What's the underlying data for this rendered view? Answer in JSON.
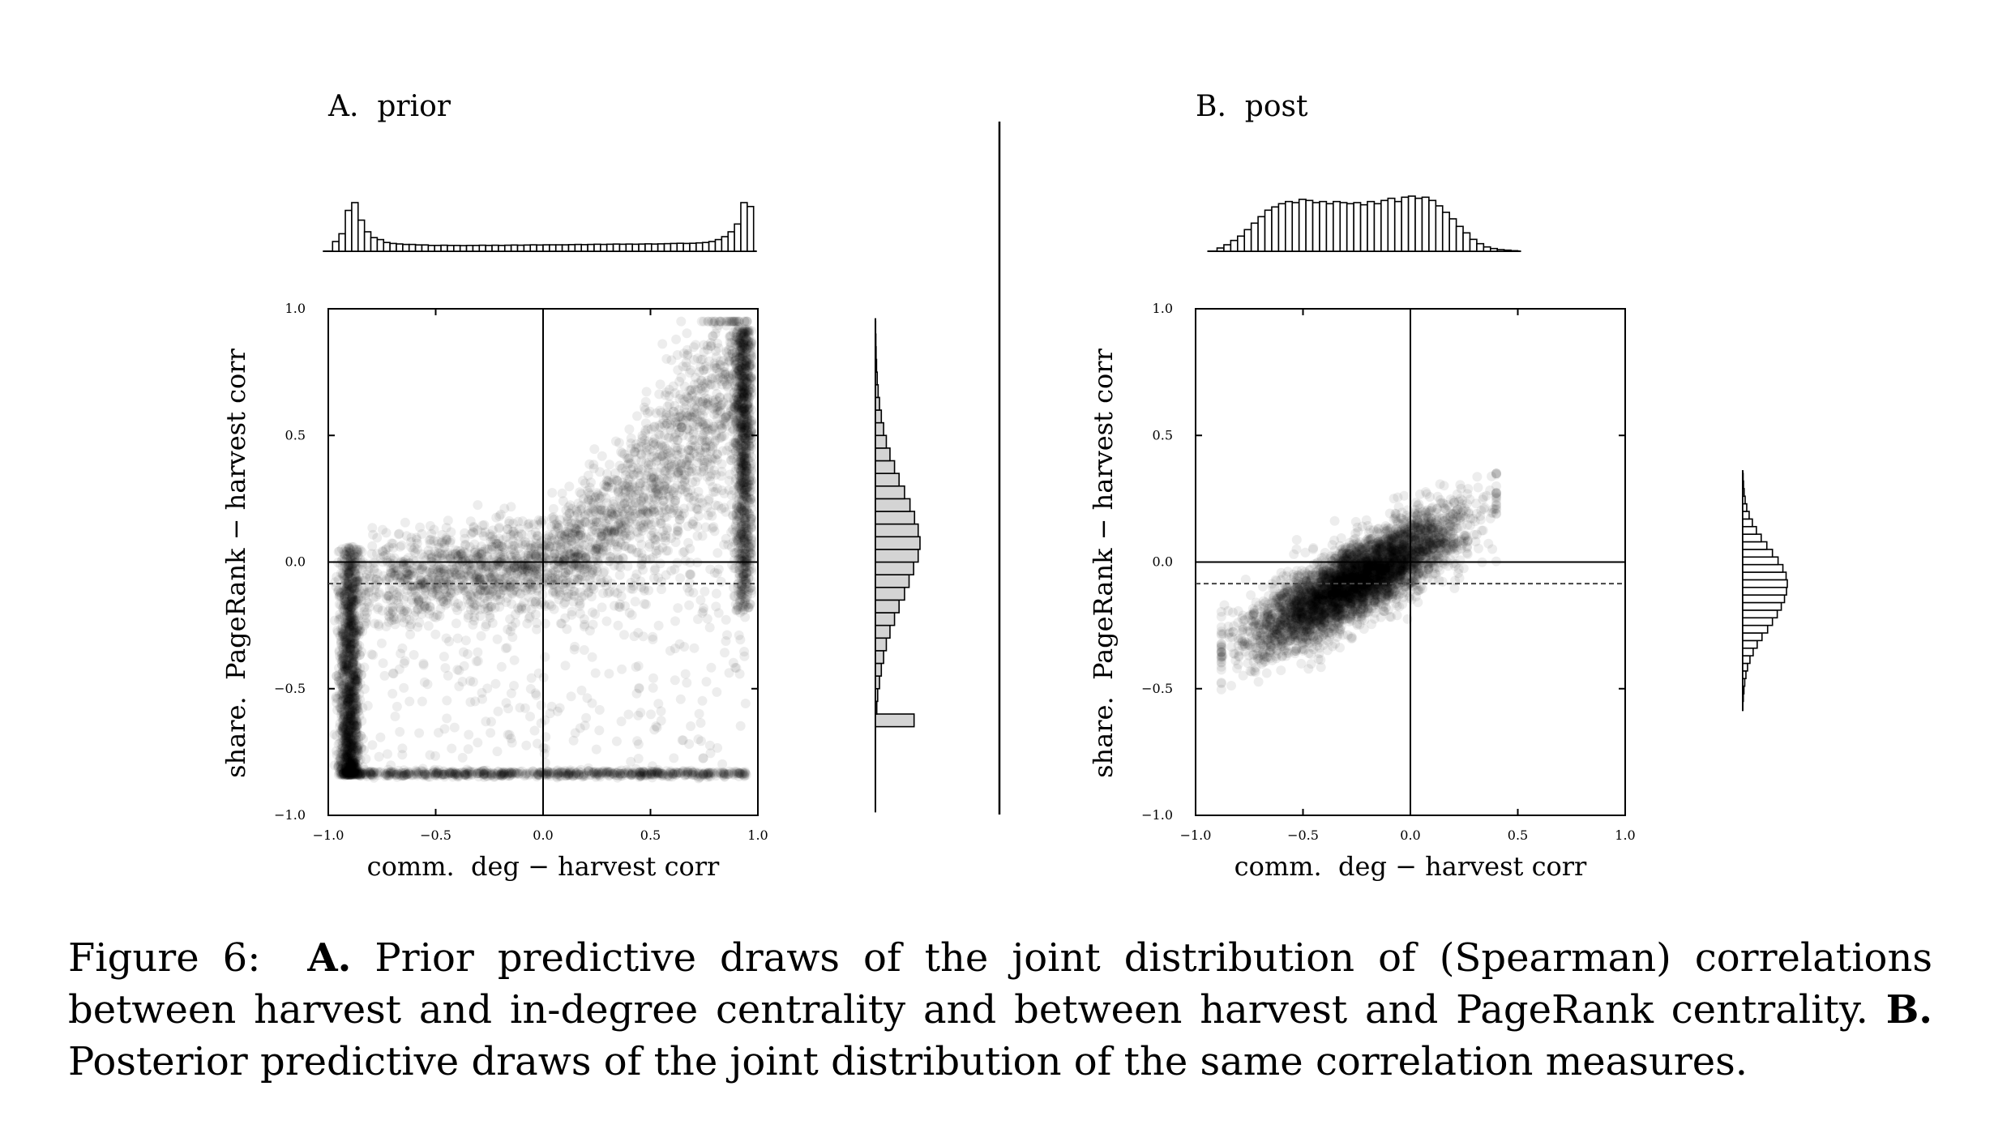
{
  "caption": {
    "lead": "Figure 6:",
    "a_marker": "A.",
    "a_text": "Prior predictive draws of the joint distribution of (Spearman) correlations between harvest and in-degree centrality and between harvest and PageRank centrality.",
    "b_marker": "B.",
    "b_text": "Posterior predictive draws of the joint distribution of the same correlation measures."
  },
  "chart_data": [
    {
      "type": "scatter",
      "title": "A.  prior",
      "xlabel": "comm.  deg − harvest corr",
      "ylabel": "share.  PageRank − harvest corr",
      "xlim": [
        -1.0,
        1.0
      ],
      "ylim": [
        -1.0,
        1.0
      ],
      "xticks": [
        "−1.0",
        "−0.5",
        "0.0",
        "0.5",
        "1.0"
      ],
      "yticks": [
        "−1.0",
        "−0.5",
        "0.0",
        "0.5",
        "1.0"
      ],
      "reference_lines": {
        "vertical_solid_x": 0.0,
        "horizontal_solid_y": 0.0,
        "horizontal_dashed_y": -0.085
      },
      "point_clusters": [
        {
          "name": "",
          "n": 1400,
          "x_range": [
            -0.95,
            -0.85
          ],
          "y_range": [
            -0.85,
            0.05
          ]
        },
        {
          "name": "",
          "n": 700,
          "x_range": [
            -0.95,
            0.95
          ],
          "y_value": -0.835
        },
        {
          "name": "",
          "n": 1000,
          "x_range": [
            0.88,
            0.96
          ],
          "y_range": [
            -0.2,
            0.92
          ]
        },
        {
          "name": "",
          "n": 2500,
          "x_range": [
            -0.9,
            0.95
          ],
          "y_trend": "flat near 0 for x<0, rising to 0.9 at x=0.95"
        },
        {
          "name": "",
          "n": 350,
          "x_range": [
            -0.95,
            0.95
          ],
          "y_range": [
            -0.85,
            0.0
          ]
        }
      ],
      "marginal_x_hist": {
        "bin_edges_range": [
          -0.98,
          0.98
        ],
        "counts": [
          1,
          1.8,
          4.2,
          5,
          3.2,
          2,
          1.4,
          1.2,
          0.9,
          0.8,
          0.75,
          0.7,
          0.7,
          0.65,
          0.65,
          0.6,
          0.6,
          0.62,
          0.6,
          0.6,
          0.58,
          0.6,
          0.6,
          0.62,
          0.6,
          0.62,
          0.6,
          0.62,
          0.64,
          0.62,
          0.64,
          0.66,
          0.64,
          0.66,
          0.66,
          0.66,
          0.66,
          0.68,
          0.7,
          0.68,
          0.7,
          0.72,
          0.7,
          0.72,
          0.74,
          0.72,
          0.74,
          0.72,
          0.74,
          0.76,
          0.74,
          0.76,
          0.78,
          0.8,
          0.82,
          0.8,
          0.82,
          0.86,
          0.9,
          1.0,
          1.2,
          1.5,
          2.0,
          2.8,
          5.0,
          4.6
        ]
      },
      "marginal_y_hist": {
        "bin_edges_range": [
          -0.95,
          0.95
        ],
        "counts": [
          0,
          0,
          0,
          0,
          0,
          0,
          8.5,
          0.3,
          0.5,
          0.9,
          1.3,
          1.8,
          2.4,
          3.2,
          4.2,
          5.2,
          6.4,
          7.4,
          8.4,
          9.4,
          9.8,
          9.4,
          8.6,
          7.6,
          6.4,
          5.2,
          4.2,
          3.2,
          2.4,
          1.8,
          1.3,
          0.9,
          0.6,
          0.4,
          0.25,
          0.15,
          0.1,
          0.05
        ]
      }
    },
    {
      "type": "scatter",
      "title": "B.  post",
      "xlabel": "comm.  deg − harvest corr",
      "ylabel": "share.  PageRank − harvest corr",
      "xlim": [
        -1.0,
        1.0
      ],
      "ylim": [
        -1.0,
        1.0
      ],
      "xticks": [
        "−1.0",
        "−0.5",
        "0.0",
        "0.5",
        "1.0"
      ],
      "yticks": [
        "−1.0",
        "−0.5",
        "0.0",
        "0.5",
        "1.0"
      ],
      "reference_lines": {
        "vertical_solid_x": 0.0,
        "horizontal_solid_y": 0.0,
        "horizontal_dashed_y": -0.085
      },
      "point_clusters": [
        {
          "name": "",
          "n": 4500,
          "x_range": [
            -0.85,
            0.35
          ],
          "y_trend": "linear from -0.3 at x=-0.75 to 0.15 at x=0.25",
          "x_peak": -0.25
        }
      ],
      "marginal_x_hist": {
        "bin_edges_range": [
          -0.9,
          0.5
        ],
        "counts": [
          0.3,
          0.6,
          1.0,
          1.4,
          2.0,
          2.6,
          3.2,
          3.8,
          4.1,
          4.4,
          4.6,
          4.5,
          4.8,
          4.7,
          4.5,
          4.6,
          4.4,
          4.6,
          4.5,
          4.4,
          4.5,
          4.3,
          4.6,
          4.4,
          4.7,
          4.9,
          4.6,
          5.0,
          5.1,
          4.9,
          5.0,
          4.7,
          4.2,
          3.6,
          3.0,
          2.3,
          1.7,
          1.1,
          0.7,
          0.4,
          0.25,
          0.15,
          0.1,
          0.05
        ]
      },
      "marginal_y_hist": {
        "bin_edges_range": [
          -0.55,
          0.35
        ],
        "counts": [
          0.15,
          0.3,
          0.5,
          0.8,
          1.2,
          1.8,
          2.6,
          3.6,
          4.8,
          6.2,
          7.4,
          8.6,
          9.6,
          10.4,
          10.9,
          11.1,
          10.8,
          10.0,
          8.8,
          7.4,
          6.0,
          4.6,
          3.4,
          2.4,
          1.6,
          1.0,
          0.6,
          0.35,
          0.2,
          0.1
        ]
      }
    }
  ]
}
